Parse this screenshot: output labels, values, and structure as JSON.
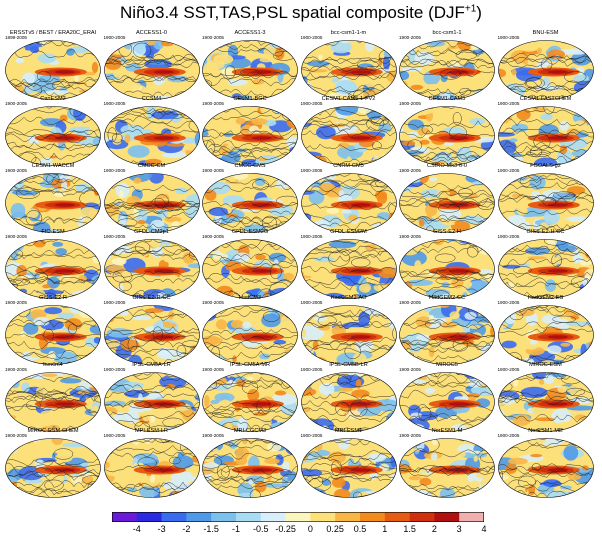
{
  "title": "Niño3.4 SST,TAS,PSL  spatial  composite (DJF",
  "title_sup": "+1",
  "palette": [
    "#6a1bd8",
    "#2a2ae0",
    "#3a6cf0",
    "#4f9ae8",
    "#7cc0ee",
    "#a9dcf4",
    "#d8eefa",
    "#fbf5c0",
    "#fce07a",
    "#f8b646",
    "#f28a1e",
    "#e65c12",
    "#d1300d",
    "#b01010",
    "#f0b0b0"
  ],
  "chart_data": {
    "type": "heatmap",
    "title": "Niño3.4 SST,TAS,PSL  spatial  composite (DJF+1)",
    "colorbar": {
      "ticks": [
        "-4",
        "-3",
        "-2",
        "-1.5",
        "-1",
        "-0.5",
        "-0.25",
        "0",
        "0.25",
        "0.5",
        "1",
        "1.5",
        "2",
        "3",
        "4"
      ]
    },
    "panels": [
      {
        "name": "ERSSTv5 / BEST / ERA20C_ERAI",
        "period": "1899-2005"
      },
      {
        "name": "ACCESS1-0",
        "period": "1900-2005"
      },
      {
        "name": "ACCESS1-3",
        "period": "1900-2005"
      },
      {
        "name": "bcc-csm1-1-m",
        "period": "1900-2005"
      },
      {
        "name": "bcc-csm1-1",
        "period": "1900-2005"
      },
      {
        "name": "BNU-ESM",
        "period": "1900-2005"
      },
      {
        "name": "CanESM2",
        "period": "1900-2005"
      },
      {
        "name": "CCSM4",
        "period": "1900-2005"
      },
      {
        "name": "CESM1-BGC",
        "period": "1900-2005"
      },
      {
        "name": "CESM1-CAM5-1-FV2",
        "period": "1900-2005"
      },
      {
        "name": "CESM1-CAM5",
        "period": "1900-2005"
      },
      {
        "name": "CESM1-FASTCHEM",
        "period": "1900-2005"
      },
      {
        "name": "CESM1-WACCM",
        "period": "1900-2005"
      },
      {
        "name": "CMCC-CM",
        "period": "1900-2005"
      },
      {
        "name": "CMCC-CMS",
        "period": "1900-2005"
      },
      {
        "name": "CNRM-CM5",
        "period": "1900-2005"
      },
      {
        "name": "CSIRO-Mk3-6-0",
        "period": "1900-2005"
      },
      {
        "name": "FGOALS-g2",
        "period": "1900-2005"
      },
      {
        "name": "FIO-ESM",
        "period": "1900-2005"
      },
      {
        "name": "GFDL-CM2p1",
        "period": "1900-2005"
      },
      {
        "name": "GFDL-ESM2G",
        "period": "1900-2005"
      },
      {
        "name": "GFDL-ESM2M",
        "period": "1900-2005"
      },
      {
        "name": "GISS-E2-H",
        "period": "1900-2005"
      },
      {
        "name": "GISS-E2-H-CC",
        "period": "1900-2005"
      },
      {
        "name": "GISS-E2-R",
        "period": "1900-2005"
      },
      {
        "name": "GISS-E2-R-CC",
        "period": "1900-2005"
      },
      {
        "name": "HadCM3",
        "period": "1900-2005"
      },
      {
        "name": "HadGEM2-AO",
        "period": "1900-2005"
      },
      {
        "name": "HadGEM2-CC",
        "period": "1900-2005"
      },
      {
        "name": "HadGEM2-ES",
        "period": "1900-2005"
      },
      {
        "name": "inmcm4",
        "period": "1900-2005"
      },
      {
        "name": "IPSL-CM5A-LR",
        "period": "1900-2005"
      },
      {
        "name": "IPSL-CM5A-MR",
        "period": "1900-2005"
      },
      {
        "name": "IPSL-CM5B-LR",
        "period": "1900-2005"
      },
      {
        "name": "MIROC5",
        "period": "1900-2005"
      },
      {
        "name": "MIROC-ESM",
        "period": "1900-2005"
      },
      {
        "name": "MIROC-ESM-CHEM",
        "period": "1900-2005"
      },
      {
        "name": "MPI-ESM-LR",
        "period": "1900-2005"
      },
      {
        "name": "MRI-CGCM3",
        "period": "1900-2005"
      },
      {
        "name": "MRI-ESM1",
        "period": "1900-2005"
      },
      {
        "name": "NorESM1-M",
        "period": "1900-2005"
      },
      {
        "name": "NorESM1-ME",
        "period": "1900-2005"
      }
    ]
  }
}
